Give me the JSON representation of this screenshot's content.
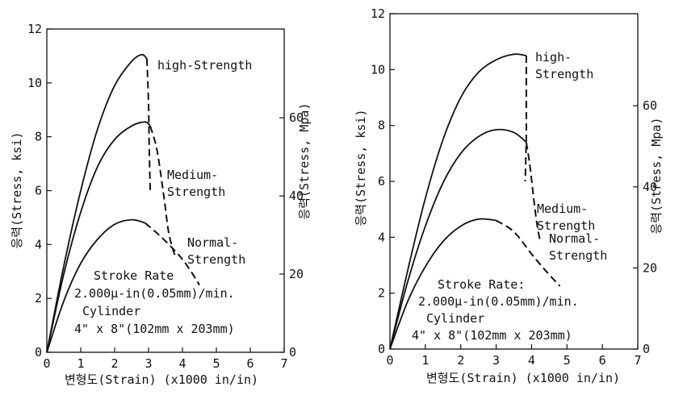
{
  "chart_data": [
    {
      "type": "line",
      "xlabel": "변형도(Strain) (x1000 in/in)",
      "ylabel": "응력(Stress, ksi)",
      "y2label": "응력(Stress, Mpa)",
      "xlim": [
        0,
        7
      ],
      "ylim": [
        0,
        12
      ],
      "y2lim": [
        0,
        82.7
      ],
      "xticks": [
        "0",
        "1",
        "2",
        "3",
        "4",
        "5",
        "6",
        "7"
      ],
      "yticks": [
        "0",
        "2",
        "4",
        "6",
        "8",
        "10",
        "12"
      ],
      "y2ticks": [
        "0",
        "20",
        "40",
        "60"
      ],
      "grid": false,
      "legend": "none",
      "annotation_lines": [
        "Stroke Rate",
        "2.000µ-in(0.05mm)/min.",
        "Cylinder",
        "4\" x 8\"(102mm x 203mm)"
      ],
      "series": [
        {
          "name": "high-Strength",
          "label_lines": [
            "high-Strength"
          ],
          "solid": [
            [
              0,
              0
            ],
            [
              0.5,
              3.2
            ],
            [
              1.0,
              6.0
            ],
            [
              1.5,
              8.3
            ],
            [
              2.0,
              9.9
            ],
            [
              2.5,
              10.8
            ],
            [
              2.8,
              11.05
            ],
            [
              2.95,
              10.9
            ]
          ],
          "dashed": [
            [
              2.95,
              10.9
            ],
            [
              3.0,
              9.2
            ],
            [
              3.02,
              7.6
            ],
            [
              3.05,
              6.0
            ]
          ]
        },
        {
          "name": "Medium-Strength",
          "label_lines": [
            "Medium-",
            "Strength"
          ],
          "solid": [
            [
              0,
              0
            ],
            [
              0.5,
              2.9
            ],
            [
              1.0,
              5.2
            ],
            [
              1.5,
              6.9
            ],
            [
              2.0,
              7.9
            ],
            [
              2.5,
              8.4
            ],
            [
              2.9,
              8.55
            ],
            [
              3.05,
              8.4
            ]
          ],
          "dashed": [
            [
              3.05,
              8.4
            ],
            [
              3.25,
              7.5
            ],
            [
              3.45,
              5.8
            ],
            [
              3.6,
              4.4
            ],
            [
              3.8,
              3.5
            ]
          ]
        },
        {
          "name": "Normal-Strength",
          "label_lines": [
            "Normal-",
            "Strength"
          ],
          "solid": [
            [
              0,
              0
            ],
            [
              0.5,
              1.9
            ],
            [
              1.0,
              3.3
            ],
            [
              1.5,
              4.2
            ],
            [
              2.0,
              4.75
            ],
            [
              2.5,
              4.92
            ],
            [
              2.9,
              4.8
            ]
          ],
          "dashed": [
            [
              2.9,
              4.8
            ],
            [
              3.4,
              4.25
            ],
            [
              3.9,
              3.6
            ],
            [
              4.2,
              3.1
            ],
            [
              4.5,
              2.5
            ]
          ]
        }
      ]
    },
    {
      "type": "line",
      "xlabel": "변형도(Strain) (x1000 in/in)",
      "ylabel": "응력(Stress, ksi)",
      "y2label": "응력(Stress, Mpa)",
      "xlim": [
        0,
        7
      ],
      "ylim": [
        0,
        12
      ],
      "y2lim": [
        0,
        82.7
      ],
      "xticks": [
        "0",
        "1",
        "2",
        "3",
        "4",
        "5",
        "6",
        "7"
      ],
      "yticks": [
        "0",
        "2",
        "4",
        "6",
        "8",
        "10",
        "12"
      ],
      "y2ticks": [
        "0",
        "20",
        "40",
        "60"
      ],
      "grid": false,
      "legend": "none",
      "annotation_lines": [
        "Stroke Rate:",
        "2.000µ-in(0.05mm)/min.",
        "Cylinder",
        "4\" x 8\"(102mm x 203mm)"
      ],
      "series": [
        {
          "name": "high-Strength",
          "label_lines": [
            "high-",
            "Strength"
          ],
          "solid": [
            [
              0,
              0
            ],
            [
              0.5,
              2.8
            ],
            [
              1.0,
              5.4
            ],
            [
              1.5,
              7.5
            ],
            [
              2.0,
              9.0
            ],
            [
              2.5,
              9.9
            ],
            [
              3.0,
              10.35
            ],
            [
              3.5,
              10.55
            ],
            [
              3.85,
              10.5
            ]
          ],
          "dashed": [
            [
              3.85,
              10.5
            ],
            [
              3.85,
              9.0
            ],
            [
              3.85,
              7.6
            ],
            [
              3.82,
              6.0
            ]
          ]
        },
        {
          "name": "Medium-Strength",
          "label_lines": [
            "Medium-",
            "Strength"
          ],
          "solid": [
            [
              0,
              0
            ],
            [
              0.5,
              2.4
            ],
            [
              1.0,
              4.4
            ],
            [
              1.5,
              5.95
            ],
            [
              2.0,
              7.0
            ],
            [
              2.5,
              7.6
            ],
            [
              3.0,
              7.85
            ],
            [
              3.5,
              7.75
            ],
            [
              3.85,
              7.4
            ]
          ],
          "dashed": [
            [
              3.85,
              7.4
            ],
            [
              3.95,
              6.6
            ],
            [
              4.05,
              5.5
            ],
            [
              4.15,
              4.5
            ],
            [
              4.25,
              3.8
            ]
          ]
        },
        {
          "name": "Normal-Strength",
          "label_lines": [
            "Normal-",
            "Strength"
          ],
          "solid": [
            [
              0,
              0
            ],
            [
              0.5,
              1.7
            ],
            [
              1.0,
              2.95
            ],
            [
              1.5,
              3.85
            ],
            [
              2.0,
              4.4
            ],
            [
              2.5,
              4.65
            ],
            [
              3.0,
              4.6
            ]
          ],
          "dashed": [
            [
              3.0,
              4.6
            ],
            [
              3.5,
              4.2
            ],
            [
              4.0,
              3.4
            ],
            [
              4.4,
              2.8
            ],
            [
              4.8,
              2.25
            ]
          ]
        }
      ]
    }
  ]
}
